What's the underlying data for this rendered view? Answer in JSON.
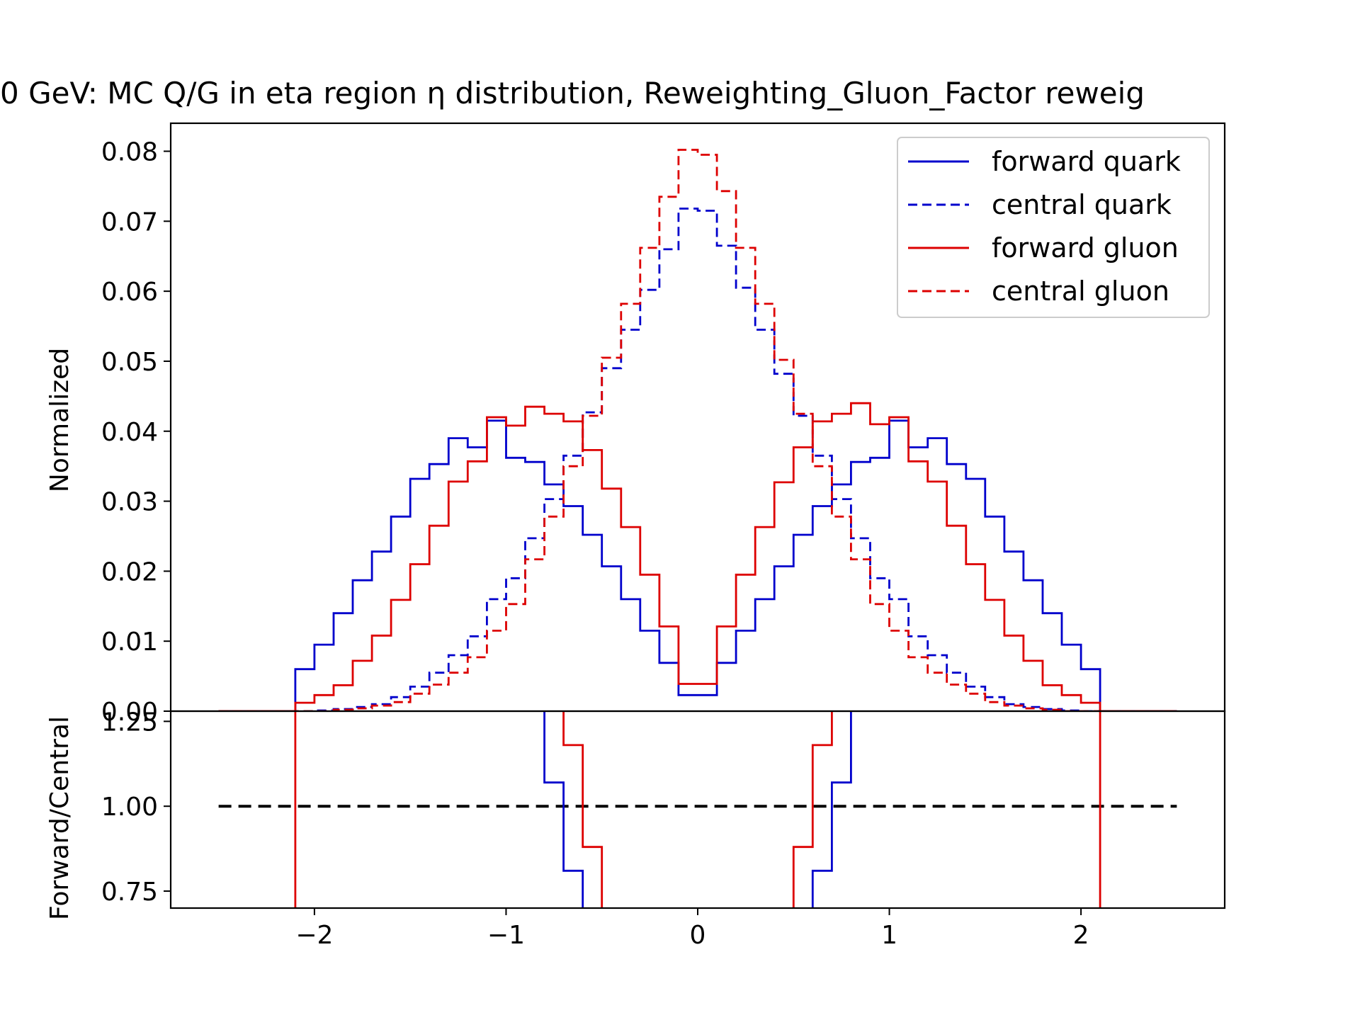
{
  "chart_data": {
    "type": "line",
    "title": "0 GeV: MC Q/G in eta region η distribution, Reweighting_Gluon_Factor reweig",
    "bin_edges": [
      -2.5,
      -2.4,
      -2.3,
      -2.2,
      -2.1,
      -2.0,
      -1.9,
      -1.8,
      -1.7,
      -1.6,
      -1.5,
      -1.4,
      -1.3,
      -1.2,
      -1.1,
      -1.0,
      -0.9,
      -0.8,
      -0.7,
      -0.6,
      -0.5,
      -0.4,
      -0.3,
      -0.2,
      -0.1,
      0.0,
      0.1,
      0.2,
      0.3,
      0.4,
      0.5,
      0.6,
      0.7,
      0.8,
      0.9,
      1.0,
      1.1,
      1.2,
      1.3,
      1.4,
      1.5,
      1.6,
      1.7,
      1.8,
      1.9,
      2.0,
      2.1,
      2.2,
      2.3,
      2.4,
      2.5
    ],
    "top_panel": {
      "ylabel": "Normalized",
      "ylim": [
        0,
        0.084
      ],
      "yticks": [
        "0.00",
        "0.01",
        "0.02",
        "0.03",
        "0.04",
        "0.05",
        "0.06",
        "0.07",
        "0.08"
      ],
      "series": [
        {
          "name": "forward quark",
          "color": "#0000cc",
          "dash": "solid",
          "values": [
            0,
            0,
            0,
            0,
            0.006,
            0.0095,
            0.014,
            0.0187,
            0.0228,
            0.0278,
            0.0332,
            0.0353,
            0.039,
            0.0377,
            0.0415,
            0.0362,
            0.0356,
            0.0324,
            0.0293,
            0.0252,
            0.0207,
            0.016,
            0.0115,
            0.0069,
            0.0023,
            0.0023,
            0.0069,
            0.0115,
            0.016,
            0.0207,
            0.0252,
            0.0293,
            0.0324,
            0.0356,
            0.0362,
            0.0415,
            0.0377,
            0.039,
            0.0353,
            0.0332,
            0.0278,
            0.0228,
            0.0187,
            0.014,
            0.0095,
            0.006,
            0,
            0,
            0,
            0
          ]
        },
        {
          "name": "central quark",
          "color": "#0000cc",
          "dash": "dashed",
          "values": [
            0,
            0,
            0,
            0,
            0,
            0.0001,
            0.0003,
            0.0006,
            0.001,
            0.002,
            0.0035,
            0.0055,
            0.008,
            0.0107,
            0.016,
            0.019,
            0.0247,
            0.0303,
            0.0365,
            0.0427,
            0.049,
            0.0545,
            0.0602,
            0.066,
            0.0718,
            0.0715,
            0.0665,
            0.0605,
            0.0545,
            0.0482,
            0.0422,
            0.0365,
            0.0303,
            0.0247,
            0.019,
            0.016,
            0.0107,
            0.008,
            0.0055,
            0.0035,
            0.002,
            0.001,
            0.0006,
            0.0003,
            0.0001,
            0,
            0,
            0,
            0,
            0
          ]
        },
        {
          "name": "forward gluon",
          "color": "#dd0000",
          "dash": "solid",
          "values": [
            0,
            0,
            0,
            0,
            0.0012,
            0.0023,
            0.0037,
            0.0072,
            0.0108,
            0.0159,
            0.021,
            0.0265,
            0.0328,
            0.0357,
            0.042,
            0.0408,
            0.0435,
            0.0425,
            0.0414,
            0.0373,
            0.0318,
            0.0263,
            0.0195,
            0.0121,
            0.0039,
            0.0039,
            0.0121,
            0.0195,
            0.0263,
            0.0327,
            0.0377,
            0.0414,
            0.0425,
            0.044,
            0.041,
            0.042,
            0.0357,
            0.0328,
            0.0265,
            0.021,
            0.0159,
            0.0108,
            0.0072,
            0.0037,
            0.0023,
            0.0012,
            0,
            0,
            0,
            0
          ]
        },
        {
          "name": "central gluon",
          "color": "#dd0000",
          "dash": "dashed",
          "values": [
            0,
            0,
            0,
            0,
            0,
            0,
            0.0002,
            0.0004,
            0.0008,
            0.0013,
            0.0025,
            0.0038,
            0.0055,
            0.0077,
            0.0115,
            0.0153,
            0.0217,
            0.0278,
            0.035,
            0.0422,
            0.0505,
            0.0582,
            0.0662,
            0.0735,
            0.0802,
            0.0795,
            0.0743,
            0.0662,
            0.0582,
            0.0502,
            0.0425,
            0.035,
            0.0278,
            0.0217,
            0.0153,
            0.0115,
            0.0077,
            0.0055,
            0.0038,
            0.0025,
            0.0013,
            0.0008,
            0.0004,
            0.0002,
            0,
            0,
            0,
            0,
            0,
            0
          ]
        }
      ]
    },
    "bottom_panel": {
      "ylabel": "Forward/Central",
      "ylim": [
        0.7,
        1.28
      ],
      "yticks": [
        "0.75",
        "1.00",
        "1.25"
      ],
      "reference": {
        "y": 1.0,
        "x_range": [
          -2.5,
          2.5
        ],
        "color": "#000000",
        "dash": "dashed"
      },
      "series": [
        {
          "name": "forward quark",
          "color": "#0000cc",
          "x": [
            -0.8,
            -0.8,
            -0.7,
            -0.7,
            -0.6,
            -0.6
          ],
          "y": [
            1.35,
            1.07,
            1.07,
            0.81,
            0.81,
            0.6
          ]
        },
        {
          "name": "forward quark",
          "color": "#0000cc",
          "x": [
            0.6,
            0.6,
            0.7,
            0.7,
            0.8,
            0.8
          ],
          "y": [
            0.6,
            0.81,
            0.81,
            1.07,
            1.07,
            1.35
          ]
        },
        {
          "name": "forward gluon",
          "color": "#dd0000",
          "x": [
            -0.7,
            -0.7,
            -0.6,
            -0.6,
            -0.5,
            -0.5
          ],
          "y": [
            1.35,
            1.18,
            1.18,
            0.88,
            0.88,
            0.6
          ]
        },
        {
          "name": "forward gluon",
          "color": "#dd0000",
          "x": [
            0.5,
            0.5,
            0.6,
            0.6,
            0.7,
            0.7
          ],
          "y": [
            0.6,
            0.88,
            0.88,
            1.18,
            1.18,
            1.35
          ]
        },
        {
          "name": "forward gluon",
          "color": "#dd0000",
          "x": [
            -2.1,
            -2.1
          ],
          "y": [
            0.6,
            1.35
          ]
        },
        {
          "name": "forward gluon",
          "color": "#dd0000",
          "x": [
            2.1,
            2.1
          ],
          "y": [
            0.6,
            1.35
          ]
        }
      ]
    },
    "x_axis": {
      "xlim": [
        -2.75,
        2.75
      ],
      "xticks": [
        -2,
        -1,
        0,
        1,
        2
      ],
      "xtick_labels": [
        "−2",
        "−1",
        "0",
        "1",
        "2"
      ]
    },
    "legend": {
      "placement": "top-right",
      "entries": [
        {
          "label": "forward quark",
          "color": "#0000cc",
          "dash": "solid"
        },
        {
          "label": "central quark",
          "color": "#0000cc",
          "dash": "dashed"
        },
        {
          "label": "forward gluon",
          "color": "#dd0000",
          "dash": "solid"
        },
        {
          "label": "central gluon",
          "color": "#dd0000",
          "dash": "dashed"
        }
      ]
    }
  }
}
